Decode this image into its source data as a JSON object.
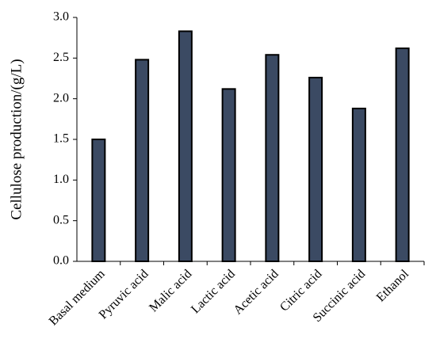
{
  "chart_data": {
    "type": "bar",
    "y_label": "Cellulose production/(g/L)",
    "categories": [
      "Basal medium",
      "Pyruvic acid",
      "Malic acid",
      "Lactic acid",
      "Acetic acid",
      "Citric acid",
      "Succinic acid",
      "Ethanol"
    ],
    "values": [
      1.5,
      2.48,
      2.83,
      2.12,
      2.54,
      2.26,
      1.88,
      2.62
    ],
    "color": "#3b4a63",
    "ylim": [
      0,
      3
    ],
    "yticks": [
      {
        "value": 0,
        "label": "0.0"
      },
      {
        "value": 0.5,
        "label": "0.5"
      },
      {
        "value": 1,
        "label": "1.0"
      },
      {
        "value": 1.5,
        "label": "1.5"
      },
      {
        "value": 2,
        "label": "2.0"
      },
      {
        "value": 2.5,
        "label": "2.5"
      },
      {
        "value": 3,
        "label": "3.0"
      }
    ],
    "grid": false
  }
}
